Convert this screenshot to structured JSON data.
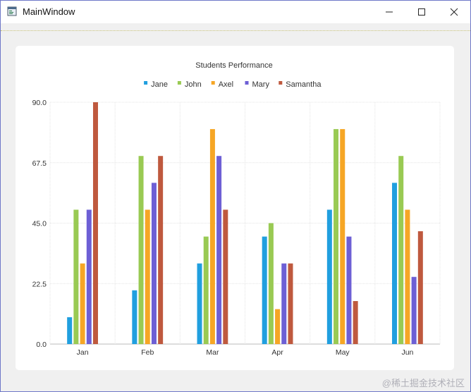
{
  "window": {
    "title": "MainWindow",
    "icons": {
      "app": "app-window-icon",
      "minimize": "minimize-icon",
      "maximize": "maximize-icon",
      "close": "close-icon"
    }
  },
  "watermark": "@稀土掘金技术社区",
  "chart_data": {
    "type": "bar",
    "title": "Students Performance",
    "xlabel": "",
    "ylabel": "",
    "categories": [
      "Jan",
      "Feb",
      "Mar",
      "Apr",
      "May",
      "Jun"
    ],
    "ylim": [
      0,
      90
    ],
    "yticks": [
      "0.0",
      "22.5",
      "45.0",
      "67.5",
      "90.0"
    ],
    "grid": true,
    "legend_position": "top",
    "series": [
      {
        "name": "Jane",
        "color": "#209fdf",
        "values": [
          10,
          20,
          30,
          40,
          50,
          60
        ]
      },
      {
        "name": "John",
        "color": "#99ca53",
        "values": [
          50,
          70,
          40,
          45,
          80,
          70
        ]
      },
      {
        "name": "Axel",
        "color": "#f6a625",
        "values": [
          30,
          50,
          80,
          13,
          80,
          50
        ]
      },
      {
        "name": "Mary",
        "color": "#6d5fd5",
        "values": [
          50,
          60,
          70,
          30,
          40,
          25
        ]
      },
      {
        "name": "Samantha",
        "color": "#bf593e",
        "values": [
          90,
          70,
          50,
          30,
          16,
          42
        ]
      }
    ]
  }
}
